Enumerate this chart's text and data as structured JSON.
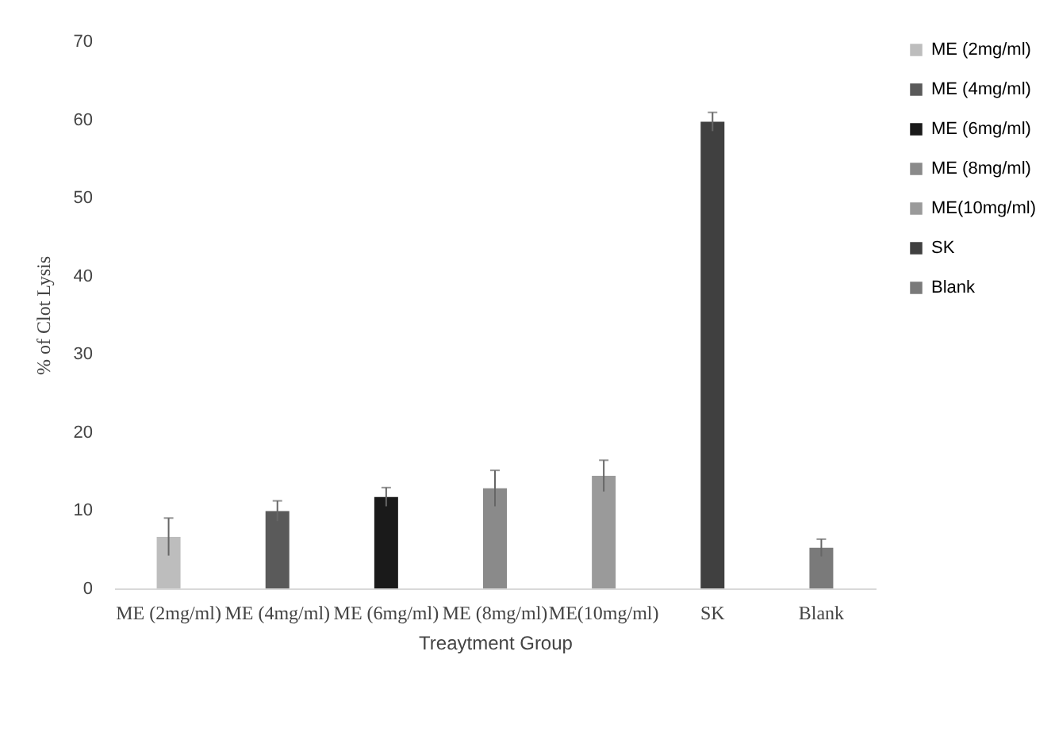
{
  "chart_data": {
    "type": "bar",
    "xlabel": "Treaytment Group",
    "ylabel": "% of Clot Lysis",
    "categories": [
      "ME (2mg/ml)",
      "ME (4mg/ml)",
      "ME (6mg/ml)",
      "ME (8mg/ml)",
      "ME(10mg/ml)",
      "SK",
      "Blank"
    ],
    "series": [
      {
        "name": "ME (2mg/ml)",
        "color": "#bdbdbd",
        "values": [
          6.6,
          null,
          null,
          null,
          null,
          null,
          null
        ],
        "errors": [
          2.4,
          null,
          null,
          null,
          null,
          null,
          null
        ]
      },
      {
        "name": "ME (4mg/ml)",
        "color": "#5a5a5a",
        "values": [
          null,
          9.9,
          null,
          null,
          null,
          null,
          null
        ],
        "errors": [
          null,
          1.3,
          null,
          null,
          null,
          null,
          null
        ]
      },
      {
        "name": "ME (6mg/ml)",
        "color": "#1a1a1a",
        "values": [
          null,
          null,
          11.7,
          null,
          null,
          null,
          null
        ],
        "errors": [
          null,
          null,
          1.2,
          null,
          null,
          null,
          null
        ]
      },
      {
        "name": "ME (8mg/ml)",
        "color": "#8a8a8a",
        "values": [
          null,
          null,
          null,
          12.8,
          null,
          null,
          null
        ],
        "errors": [
          null,
          null,
          null,
          2.3,
          null,
          null,
          null
        ]
      },
      {
        "name": "ME(10mg/ml)",
        "color": "#9a9a9a",
        "values": [
          null,
          null,
          null,
          null,
          14.4,
          null,
          null
        ],
        "errors": [
          null,
          null,
          null,
          null,
          2.0,
          null,
          null
        ]
      },
      {
        "name": "SK",
        "color": "#404040",
        "values": [
          null,
          null,
          null,
          null,
          null,
          59.7,
          null
        ],
        "errors": [
          null,
          null,
          null,
          null,
          null,
          1.2,
          null
        ]
      },
      {
        "name": "Blank",
        "color": "#7a7a7a",
        "values": [
          null,
          null,
          null,
          null,
          null,
          null,
          5.2
        ],
        "errors": [
          null,
          null,
          null,
          null,
          null,
          null,
          1.1
        ]
      }
    ],
    "ylim": [
      0,
      70
    ],
    "yticks": [
      0,
      10,
      20,
      30,
      40,
      50,
      60,
      70
    ],
    "legend": "right"
  }
}
